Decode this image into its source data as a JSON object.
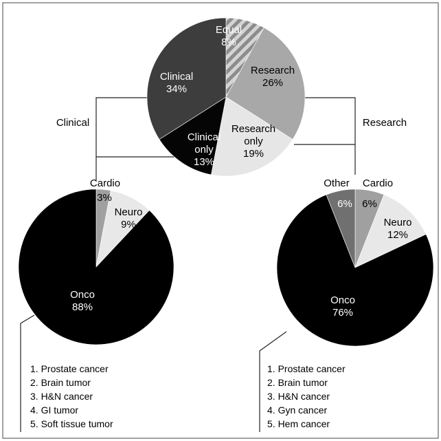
{
  "chart_data": [
    {
      "type": "pie",
      "categories": [
        "Equal",
        "Research",
        "Research only",
        "Clinical only",
        "Clinical"
      ],
      "values": [
        8,
        26,
        19,
        13,
        34
      ],
      "value_labels": [
        "8%",
        "26%",
        "19%",
        "13%",
        "34%"
      ],
      "label_lines": [
        [
          "Equal",
          "8%"
        ],
        [
          "Research",
          "26%"
        ],
        [
          "Research",
          "only",
          "19%"
        ],
        [
          "Clinical",
          "only",
          "13%"
        ],
        [
          "Clinical",
          "34%"
        ]
      ],
      "colors": [
        "#9a9a9a",
        "#a8a8a8",
        "#e6e6e6",
        "#050505",
        "#3d3d3d"
      ],
      "label_colors": [
        "#ffffff",
        "#000000",
        "#000000",
        "#ffffff",
        "#ffffff"
      ],
      "hatched": [
        true,
        false,
        false,
        false,
        false
      ]
    },
    {
      "type": "pie",
      "categories": [
        "Cardio",
        "Neuro",
        "Onco"
      ],
      "values": [
        3,
        9,
        88
      ],
      "value_labels": [
        "3%",
        "9%",
        "88%"
      ],
      "colors": [
        "#a0a0a0",
        "#e8e8e8",
        "#000000"
      ],
      "label_colors": [
        "#000000",
        "#000000",
        "#ffffff"
      ]
    },
    {
      "type": "pie",
      "categories": [
        "Cardio",
        "Neuro",
        "Onco",
        "Other"
      ],
      "values": [
        6,
        12,
        76,
        6
      ],
      "value_labels": [
        "6%",
        "12%",
        "76%",
        "6%"
      ],
      "colors": [
        "#a0a0a0",
        "#e8e8e8",
        "#000000",
        "#707070"
      ],
      "label_colors": [
        "#000000",
        "#000000",
        "#ffffff",
        "#ffffff"
      ]
    }
  ],
  "branch_labels": {
    "left": "Clinical",
    "right": "Research"
  },
  "onco_lists": {
    "left": [
      "1. Prostate cancer",
      "2. Brain tumor",
      "3. H&N cancer",
      "4. GI tumor",
      "5. Soft tissue tumor"
    ],
    "right": [
      "1. Prostate cancer",
      "2. Brain tumor",
      "3. H&N cancer",
      "4. Gyn cancer",
      "5. Hem cancer"
    ]
  }
}
